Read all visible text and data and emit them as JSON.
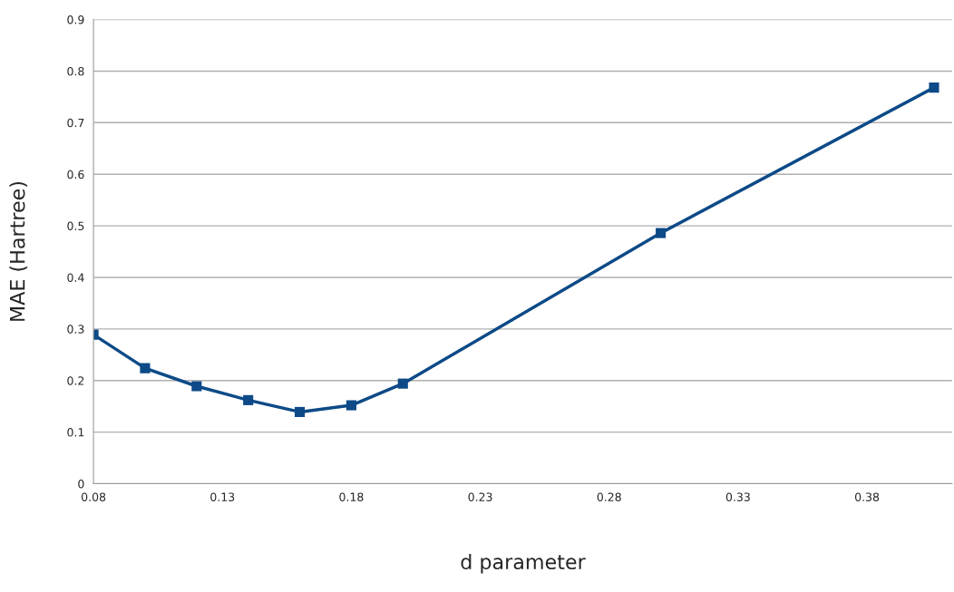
{
  "chart_data": {
    "type": "line",
    "xlabel": "d parameter",
    "ylabel": "MAE (Hartree)",
    "x": [
      0.08,
      0.1,
      0.12,
      0.14,
      0.16,
      0.18,
      0.2,
      0.3,
      0.406
    ],
    "series": [
      {
        "color": "#0d4a87",
        "values": [
          0.289,
          0.224,
          0.189,
          0.162,
          0.139,
          0.152,
          0.194,
          0.486,
          0.768
        ]
      }
    ],
    "xlim": [
      0.08,
      0.413
    ],
    "xticks": [
      0.08,
      0.13,
      0.18,
      0.23,
      0.28,
      0.33,
      0.38
    ],
    "ylim": [
      0,
      0.9
    ],
    "yticks": [
      0,
      0.1,
      0.2,
      0.3,
      0.4,
      0.5,
      0.6,
      0.7,
      0.8,
      0.9
    ],
    "grid": "y",
    "marker": "square",
    "line_style": "solid"
  }
}
